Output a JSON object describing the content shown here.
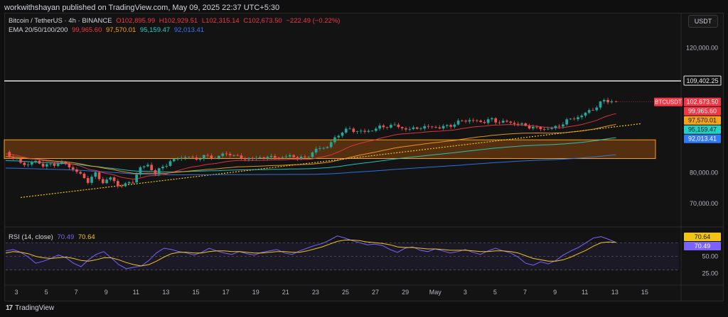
{
  "header": {
    "published_by": "workwithshayan published on TradingView.com, May 09, 2025 22:37 UTC+5:30"
  },
  "legend": {
    "symbol": "Bitcoin / TetherUS · 4h · BINANCE",
    "open": "O102,895.99",
    "high": "H102,929.51",
    "low": "L102,315.14",
    "close": "C102,673.50",
    "change": "−222.49 (−0.22%)",
    "ema_label": "EMA 20/50/100/200",
    "ema20": "99,965.60",
    "ema50": "97,570.01",
    "ema100": "95,159.47",
    "ema200": "92,013.41",
    "rsi_label": "RSI (14, close)",
    "rsi_value": "70.49",
    "rsi_ma": "70.64"
  },
  "toolbar": {
    "currency": "USDT"
  },
  "footer": {
    "brand": "TradingView"
  },
  "colors": {
    "bull": "#26a69a",
    "bear": "#ef5350",
    "ema20": "#f23645",
    "ema50": "#f7a21b",
    "ema100": "#22d1c6",
    "ema200": "#3179f5",
    "zone_fill": "#6b3a10",
    "zone_border": "#f7a21b",
    "rsi_line": "#7b61ff",
    "rsi_ma": "#f0c419",
    "trend_line": "#f0c419"
  },
  "chart_data": [
    {
      "type": "candlestick",
      "title": "Bitcoin / TetherUS · 4h · BINANCE",
      "x_ticks": [
        "3",
        "5",
        "7",
        "9",
        "11",
        "13",
        "15",
        "17",
        "19",
        "21",
        "23",
        "25",
        "27",
        "29",
        "May",
        "3",
        "5",
        "7",
        "9",
        "11",
        "13",
        "15"
      ],
      "y_ticks": [
        "120,000.00",
        "80,000.00",
        "70,000.00"
      ],
      "ylim": [
        63000,
        124000
      ],
      "price_labels": {
        "horizontal_line": "109,402.25",
        "last_symbol": "BTCUSDT",
        "last_price": "102,673.50",
        "ema20": "99,965.60",
        "ema50": "97,570.01",
        "ema100": "95,159.47",
        "ema200": "92,013.41"
      },
      "horizontal_line_value": 109402.25,
      "zone": {
        "from_value": 84500,
        "to_value": 90500
      },
      "trendline": [
        {
          "day": 1.0,
          "value": 72000
        },
        {
          "day": 42.5,
          "value": 95700
        }
      ],
      "price_path": [
        [
          0,
          86400
        ],
        [
          0.5,
          84600
        ],
        [
          1,
          83200
        ],
        [
          1.5,
          82500
        ],
        [
          2,
          83600
        ],
        [
          2.5,
          82400
        ],
        [
          3,
          82300
        ],
        [
          3.5,
          83100
        ],
        [
          4,
          82700
        ],
        [
          4.5,
          81200
        ],
        [
          5,
          79200
        ],
        [
          5.5,
          77300
        ],
        [
          6,
          79600
        ],
        [
          6.5,
          76800
        ],
        [
          7,
          78400
        ],
        [
          7.5,
          75800
        ],
        [
          8,
          76200
        ],
        [
          8.5,
          77200
        ],
        [
          9,
          81600
        ],
        [
          9.5,
          82300
        ],
        [
          10,
          79800
        ],
        [
          10.5,
          81800
        ],
        [
          11,
          83600
        ],
        [
          11.5,
          84400
        ],
        [
          12,
          85300
        ],
        [
          12.5,
          84300
        ],
        [
          13,
          84900
        ],
        [
          13.5,
          85200
        ],
        [
          14,
          84700
        ],
        [
          14.5,
          85800
        ],
        [
          15,
          86100
        ],
        [
          15.5,
          84900
        ],
        [
          16,
          84600
        ],
        [
          16.5,
          84300
        ],
        [
          17,
          84900
        ],
        [
          17.5,
          84800
        ],
        [
          18,
          85100
        ],
        [
          18.5,
          84700
        ],
        [
          19,
          85500
        ],
        [
          19.5,
          84700
        ],
        [
          20,
          84600
        ],
        [
          20.5,
          86500
        ],
        [
          21,
          87800
        ],
        [
          21.5,
          88400
        ],
        [
          22,
          90800
        ],
        [
          22.5,
          93400
        ],
        [
          23,
          93700
        ],
        [
          23.5,
          93400
        ],
        [
          24,
          92900
        ],
        [
          24.5,
          93800
        ],
        [
          25,
          94500
        ],
        [
          25.5,
          94900
        ],
        [
          26,
          95200
        ],
        [
          26.5,
          94200
        ],
        [
          27,
          93900
        ],
        [
          27.5,
          94300
        ],
        [
          28,
          94600
        ],
        [
          28.5,
          94700
        ],
        [
          29,
          94400
        ],
        [
          29.5,
          94900
        ],
        [
          30,
          95600
        ],
        [
          30.5,
          96600
        ],
        [
          31,
          96900
        ],
        [
          31.5,
          96300
        ],
        [
          32,
          96500
        ],
        [
          32.5,
          96900
        ],
        [
          33,
          96300
        ],
        [
          33.5,
          96200
        ],
        [
          34,
          95900
        ],
        [
          34.5,
          95300
        ],
        [
          35,
          94700
        ],
        [
          35.5,
          94300
        ],
        [
          36,
          93900
        ],
        [
          36.5,
          94300
        ],
        [
          37,
          94900
        ],
        [
          37.5,
          96800
        ],
        [
          38,
          97300
        ],
        [
          38.5,
          98400
        ],
        [
          39,
          99700
        ],
        [
          39.5,
          101200
        ],
        [
          40,
          103200
        ],
        [
          40.5,
          102900
        ],
        [
          40.8,
          102673.5
        ]
      ]
    },
    {
      "type": "line",
      "title": "RSI (14, close)",
      "y_ticks": [
        "50.00",
        "25.00"
      ],
      "ylim": [
        10,
        88
      ],
      "bands": {
        "upper": 70,
        "middle": 50,
        "lower": 30
      },
      "series": [
        {
          "name": "RSI",
          "values": [
            58,
            60,
            56,
            49,
            40,
            43,
            47,
            52,
            48,
            40,
            35,
            45,
            53,
            57,
            48,
            38,
            32,
            34,
            36,
            44,
            55,
            62,
            60,
            57,
            55,
            52,
            56,
            62,
            58,
            55,
            53,
            57,
            54,
            52,
            56,
            58,
            60,
            55,
            53,
            58,
            62,
            66,
            69,
            74,
            80,
            77,
            73,
            70,
            67,
            68,
            66,
            60,
            56,
            62,
            64,
            59,
            57,
            61,
            58,
            55,
            57,
            60,
            56,
            53,
            58,
            62,
            58,
            55,
            49,
            40,
            37,
            42,
            39,
            44,
            52,
            58,
            63,
            70,
            77,
            79,
            75,
            70.49
          ]
        },
        {
          "name": "RSI MA",
          "values": [
            55,
            57,
            56,
            54,
            50,
            48,
            47,
            48,
            49,
            47,
            44,
            43,
            45,
            48,
            48,
            45,
            41,
            38,
            36,
            38,
            43,
            49,
            54,
            56,
            56,
            55,
            55,
            57,
            58,
            58,
            57,
            57,
            56,
            55,
            55,
            56,
            57,
            57,
            56,
            56,
            58,
            61,
            64,
            68,
            72,
            74,
            74,
            73,
            71,
            70,
            69,
            67,
            64,
            63,
            63,
            62,
            61,
            61,
            60,
            59,
            59,
            59,
            58,
            57,
            57,
            58,
            58,
            57,
            55,
            51,
            47,
            45,
            43,
            43,
            45,
            49,
            54,
            59,
            65,
            70,
            71,
            70.64
          ]
        }
      ]
    }
  ]
}
